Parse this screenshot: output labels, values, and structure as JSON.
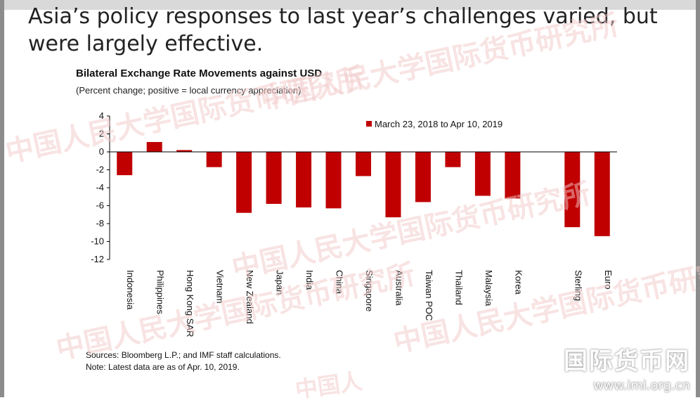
{
  "slide": {
    "title": "Asia’s policy responses to last year’s challenges varied, but were largely effective."
  },
  "chart_data": {
    "type": "bar",
    "title": "Bilateral Exchange Rate Movements against USD",
    "subtitle": "(Percent change; positive = local currency appreciation)",
    "ylim": [
      -12,
      4
    ],
    "yticks": [
      4,
      2,
      0,
      -2,
      -4,
      -6,
      -8,
      -10,
      -12
    ],
    "grid": false,
    "legend_position": "top-right",
    "bar_color": "#c00000",
    "categories": [
      "Indonesia",
      "Philippines",
      "Hong Kong SAR",
      "Vietnam",
      "New Zealand",
      "Japan",
      "India",
      "China",
      "Singapore",
      "Australia",
      "Taiwan POC",
      "Thailand",
      "Malaysia",
      "Korea",
      "",
      "Sterling",
      "Euro"
    ],
    "series": [
      {
        "name": "March 23, 2018 to Apr 10, 2019",
        "values": [
          -2.6,
          1.1,
          0.2,
          -1.7,
          -6.8,
          -5.8,
          -6.2,
          -6.3,
          -2.7,
          -7.3,
          -5.6,
          -1.7,
          -4.9,
          -5.2,
          null,
          -8.4,
          -9.4
        ]
      }
    ]
  },
  "notes": {
    "sources": "Sources: Bloomberg L.P.; and IMF staff calculations.",
    "note": "Note: Latest data are as of Apr. 10, 2019."
  },
  "watermarks": [
    "中国人民大学国际货币研究所",
    "中国人民大学国际货币研究所",
    "中国人民大学国际货币研究所",
    "中国人民大学国际货币研究所",
    "中国人民大学国际货币研究所",
    "中国人"
  ],
  "logo": {
    "text": "国际货币网",
    "url": "www.imi.org.cn"
  }
}
